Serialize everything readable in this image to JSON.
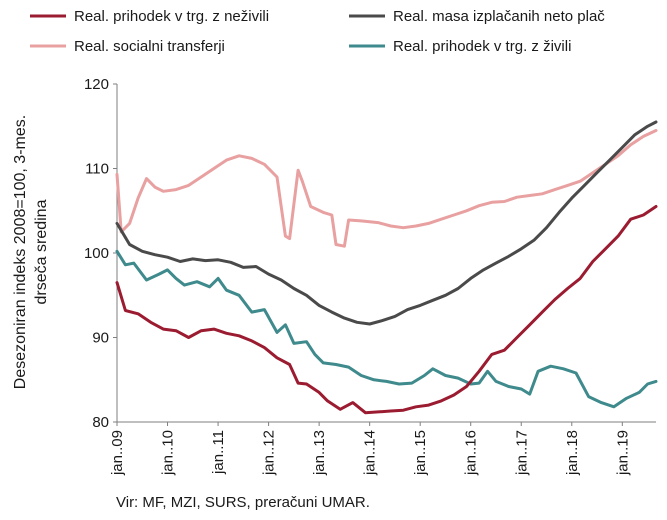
{
  "chart_data": {
    "type": "line",
    "title": "",
    "ylabel_line1": "Desezoniran indeks 2008=100, 3-mes.",
    "ylabel_line2": "drseča sredina",
    "xlabel": "",
    "ylim": [
      80,
      120
    ],
    "yticks": [
      80,
      90,
      100,
      110,
      120
    ],
    "grid": false,
    "legend_position": "top",
    "x_start": "2009-01",
    "x_end": "2019-09",
    "x_tick_labels": [
      "jan..09",
      "jan..10",
      "jan..11",
      "jan..12",
      "jan..13",
      "jan..14",
      "jan..15",
      "jan..16",
      "jan..17",
      "jan..18",
      "jan..19"
    ],
    "source": "Vir: MF, MZI, SURS, preračuni UMAR.",
    "series": [
      {
        "name": "Real. prihodek v trg. z neživili",
        "color": "#9b1b30",
        "points": [
          [
            "2009-01",
            96.5
          ],
          [
            "2009-03",
            93.2
          ],
          [
            "2009-06",
            92.8
          ],
          [
            "2009-09",
            91.8
          ],
          [
            "2009-12",
            91.0
          ],
          [
            "2010-03",
            90.8
          ],
          [
            "2010-06",
            90.0
          ],
          [
            "2010-09",
            90.8
          ],
          [
            "2010-12",
            91.0
          ],
          [
            "2011-03",
            90.5
          ],
          [
            "2011-06",
            90.2
          ],
          [
            "2011-09",
            89.6
          ],
          [
            "2011-12",
            88.8
          ],
          [
            "2012-03",
            87.6
          ],
          [
            "2012-06",
            86.8
          ],
          [
            "2012-08",
            84.6
          ],
          [
            "2012-10",
            84.5
          ],
          [
            "2013-01",
            83.5
          ],
          [
            "2013-03",
            82.5
          ],
          [
            "2013-06",
            81.5
          ],
          [
            "2013-09",
            82.3
          ],
          [
            "2013-12",
            81.1
          ],
          [
            "2014-03",
            81.2
          ],
          [
            "2014-06",
            81.3
          ],
          [
            "2014-09",
            81.4
          ],
          [
            "2014-12",
            81.8
          ],
          [
            "2015-03",
            82.0
          ],
          [
            "2015-06",
            82.5
          ],
          [
            "2015-09",
            83.2
          ],
          [
            "2015-12",
            84.2
          ],
          [
            "2016-03",
            86.0
          ],
          [
            "2016-06",
            88.0
          ],
          [
            "2016-09",
            88.5
          ],
          [
            "2016-12",
            90.0
          ],
          [
            "2017-03",
            91.5
          ],
          [
            "2017-06",
            93.0
          ],
          [
            "2017-09",
            94.5
          ],
          [
            "2017-12",
            95.8
          ],
          [
            "2018-03",
            97.0
          ],
          [
            "2018-06",
            99.0
          ],
          [
            "2018-09",
            100.5
          ],
          [
            "2018-12",
            102.0
          ],
          [
            "2019-03",
            104.0
          ],
          [
            "2019-06",
            104.5
          ],
          [
            "2019-09",
            105.5
          ]
        ]
      },
      {
        "name": "Real. masa izplačanih neto plač",
        "color": "#4a4a4a",
        "points": [
          [
            "2009-01",
            103.5
          ],
          [
            "2009-04",
            101.0
          ],
          [
            "2009-07",
            100.2
          ],
          [
            "2009-10",
            99.8
          ],
          [
            "2010-01",
            99.5
          ],
          [
            "2010-04",
            99.0
          ],
          [
            "2010-07",
            99.3
          ],
          [
            "2010-10",
            99.1
          ],
          [
            "2011-01",
            99.2
          ],
          [
            "2011-04",
            98.9
          ],
          [
            "2011-07",
            98.3
          ],
          [
            "2011-10",
            98.4
          ],
          [
            "2012-01",
            97.5
          ],
          [
            "2012-04",
            96.8
          ],
          [
            "2012-07",
            95.8
          ],
          [
            "2012-10",
            95.0
          ],
          [
            "2013-01",
            93.8
          ],
          [
            "2013-04",
            93.0
          ],
          [
            "2013-07",
            92.3
          ],
          [
            "2013-10",
            91.8
          ],
          [
            "2014-01",
            91.6
          ],
          [
            "2014-04",
            92.0
          ],
          [
            "2014-07",
            92.5
          ],
          [
            "2014-10",
            93.3
          ],
          [
            "2015-01",
            93.8
          ],
          [
            "2015-04",
            94.4
          ],
          [
            "2015-07",
            95.0
          ],
          [
            "2015-10",
            95.8
          ],
          [
            "2016-01",
            97.0
          ],
          [
            "2016-04",
            98.0
          ],
          [
            "2016-07",
            98.8
          ],
          [
            "2016-10",
            99.6
          ],
          [
            "2017-01",
            100.5
          ],
          [
            "2017-04",
            101.5
          ],
          [
            "2017-07",
            103.0
          ],
          [
            "2017-10",
            104.8
          ],
          [
            "2018-01",
            106.5
          ],
          [
            "2018-04",
            108.0
          ],
          [
            "2018-07",
            109.5
          ],
          [
            "2018-10",
            111.0
          ],
          [
            "2019-01",
            112.5
          ],
          [
            "2019-04",
            114.0
          ],
          [
            "2019-07",
            115.0
          ],
          [
            "2019-09",
            115.5
          ]
        ]
      },
      {
        "name": "Real. socialni transferji",
        "color": "#e8a0a0",
        "points": [
          [
            "2009-01",
            109.3
          ],
          [
            "2009-02",
            102.5
          ],
          [
            "2009-04",
            103.5
          ],
          [
            "2009-06",
            106.5
          ],
          [
            "2009-08",
            108.8
          ],
          [
            "2009-10",
            107.8
          ],
          [
            "2009-12",
            107.3
          ],
          [
            "2010-03",
            107.5
          ],
          [
            "2010-06",
            108.0
          ],
          [
            "2010-09",
            109.0
          ],
          [
            "2010-12",
            110.0
          ],
          [
            "2011-03",
            111.0
          ],
          [
            "2011-06",
            111.5
          ],
          [
            "2011-09",
            111.2
          ],
          [
            "2011-12",
            110.5
          ],
          [
            "2012-03",
            109.0
          ],
          [
            "2012-05",
            102.0
          ],
          [
            "2012-06",
            101.7
          ],
          [
            "2012-08",
            109.8
          ],
          [
            "2012-09",
            108.5
          ],
          [
            "2012-11",
            105.5
          ],
          [
            "2013-02",
            104.8
          ],
          [
            "2013-04",
            104.5
          ],
          [
            "2013-05",
            101.0
          ],
          [
            "2013-07",
            100.8
          ],
          [
            "2013-08",
            103.9
          ],
          [
            "2013-11",
            103.8
          ],
          [
            "2014-03",
            103.6
          ],
          [
            "2014-06",
            103.2
          ],
          [
            "2014-09",
            103.0
          ],
          [
            "2014-12",
            103.2
          ],
          [
            "2015-03",
            103.5
          ],
          [
            "2015-06",
            104.0
          ],
          [
            "2015-09",
            104.5
          ],
          [
            "2015-12",
            105.0
          ],
          [
            "2016-03",
            105.6
          ],
          [
            "2016-06",
            106.0
          ],
          [
            "2016-09",
            106.1
          ],
          [
            "2016-12",
            106.6
          ],
          [
            "2017-03",
            106.8
          ],
          [
            "2017-06",
            107.0
          ],
          [
            "2017-09",
            107.5
          ],
          [
            "2017-12",
            108.0
          ],
          [
            "2018-03",
            108.5
          ],
          [
            "2018-06",
            109.5
          ],
          [
            "2018-09",
            110.5
          ],
          [
            "2018-12",
            111.5
          ],
          [
            "2019-03",
            112.8
          ],
          [
            "2019-06",
            113.8
          ],
          [
            "2019-09",
            114.5
          ]
        ]
      },
      {
        "name": "Real. prihodek v trg. z živili",
        "color": "#3f8a8c",
        "points": [
          [
            "2009-01",
            100.2
          ],
          [
            "2009-03",
            98.6
          ],
          [
            "2009-05",
            98.8
          ],
          [
            "2009-08",
            96.8
          ],
          [
            "2009-11",
            97.5
          ],
          [
            "2010-01",
            98.0
          ],
          [
            "2010-03",
            97.0
          ],
          [
            "2010-05",
            96.2
          ],
          [
            "2010-08",
            96.6
          ],
          [
            "2010-11",
            96.0
          ],
          [
            "2011-01",
            97.0
          ],
          [
            "2011-03",
            95.6
          ],
          [
            "2011-06",
            95.0
          ],
          [
            "2011-09",
            93.0
          ],
          [
            "2011-12",
            93.3
          ],
          [
            "2012-03",
            90.6
          ],
          [
            "2012-05",
            91.5
          ],
          [
            "2012-07",
            89.3
          ],
          [
            "2012-10",
            89.5
          ],
          [
            "2012-12",
            88.0
          ],
          [
            "2013-02",
            87.0
          ],
          [
            "2013-05",
            86.8
          ],
          [
            "2013-08",
            86.5
          ],
          [
            "2013-11",
            85.5
          ],
          [
            "2014-02",
            85.0
          ],
          [
            "2014-05",
            84.8
          ],
          [
            "2014-08",
            84.5
          ],
          [
            "2014-11",
            84.6
          ],
          [
            "2015-02",
            85.5
          ],
          [
            "2015-04",
            86.3
          ],
          [
            "2015-07",
            85.5
          ],
          [
            "2015-10",
            85.2
          ],
          [
            "2016-01",
            84.5
          ],
          [
            "2016-03",
            84.6
          ],
          [
            "2016-05",
            86.0
          ],
          [
            "2016-07",
            84.8
          ],
          [
            "2016-10",
            84.2
          ],
          [
            "2017-01",
            83.9
          ],
          [
            "2017-03",
            83.3
          ],
          [
            "2017-05",
            86.0
          ],
          [
            "2017-08",
            86.6
          ],
          [
            "2017-11",
            86.3
          ],
          [
            "2018-02",
            85.8
          ],
          [
            "2018-05",
            83.0
          ],
          [
            "2018-08",
            82.3
          ],
          [
            "2018-11",
            81.8
          ],
          [
            "2019-02",
            82.8
          ],
          [
            "2019-05",
            83.5
          ],
          [
            "2019-07",
            84.5
          ],
          [
            "2019-09",
            84.8
          ]
        ]
      }
    ]
  }
}
